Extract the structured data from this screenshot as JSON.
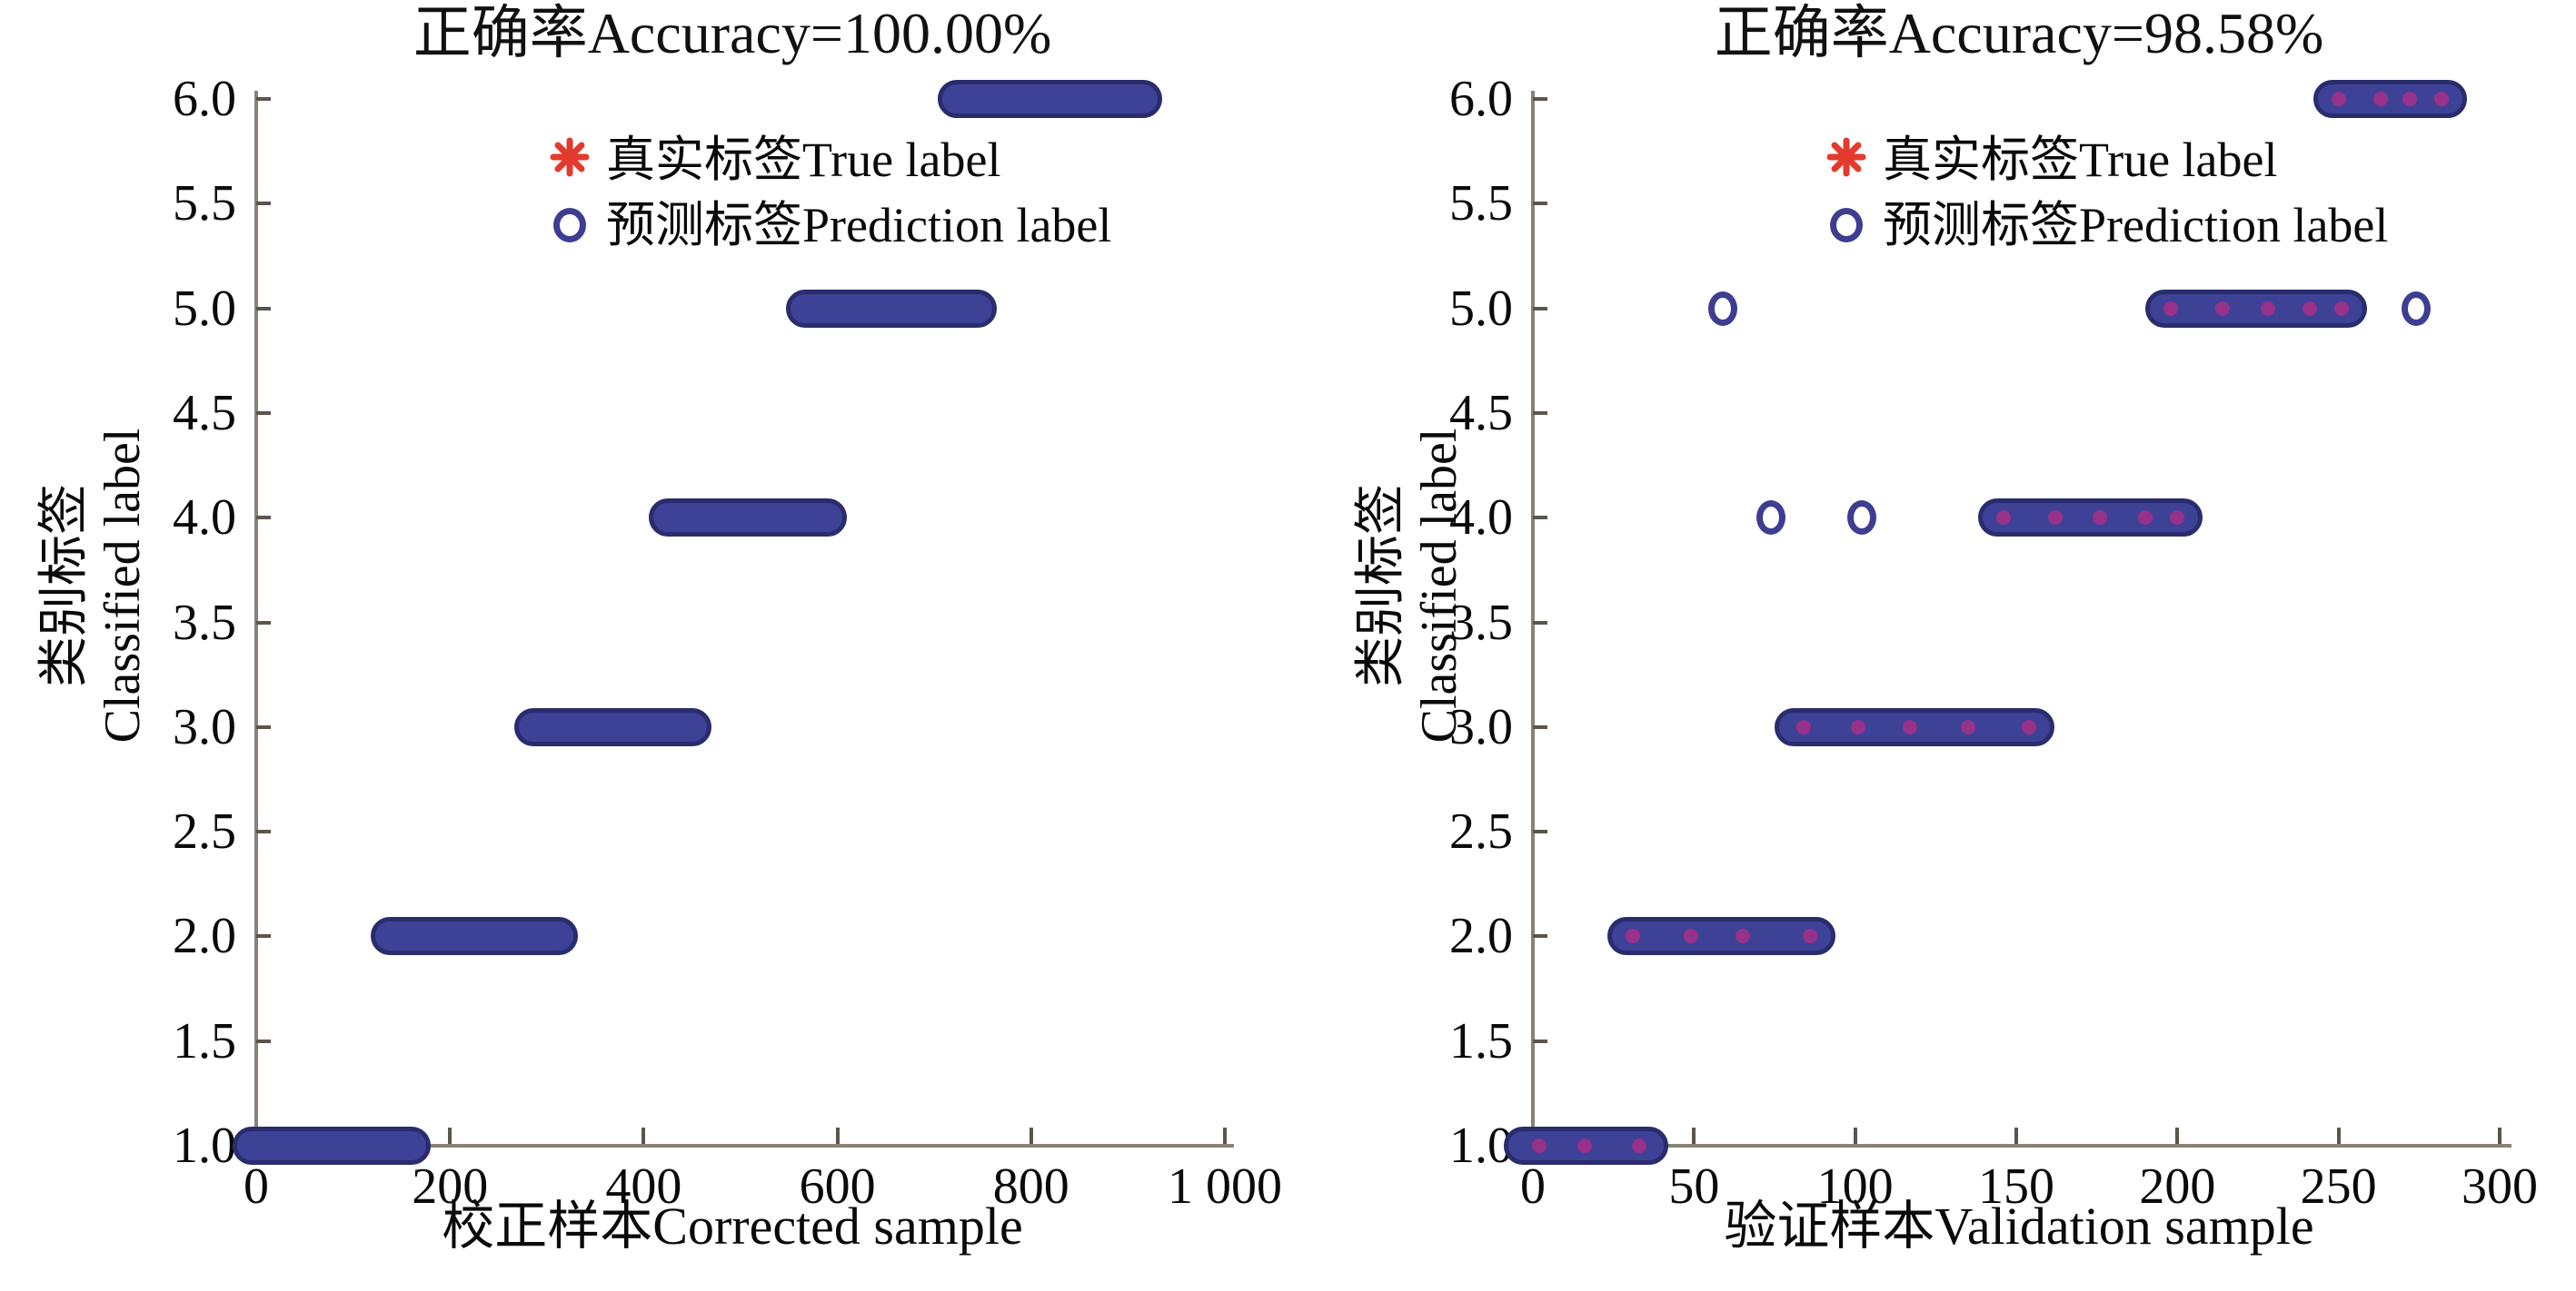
{
  "figure": {
    "background": "#ffffff"
  },
  "colors": {
    "bar_fill": "#3e4297",
    "bar_border": "#292c6d",
    "circle_ring": "#3d3d91",
    "asterisk_red": "#e23b2e",
    "true_dot_magenta": "#97318a",
    "axis_line": "#8a8177",
    "tick_mark": "#5c554c",
    "text": "#0a0a0a"
  },
  "legend": {
    "true_label": "真实标签True label",
    "prediction_label": "预测标签Prediction label"
  },
  "chart_data": [
    {
      "type": "scatter",
      "title": "正确率Accuracy=100.00%",
      "accuracy": "100.00%",
      "xlabel": "校正样本Corrected sample",
      "ylabel_cn": "类别标签",
      "ylabel_en": "Classified label",
      "xlim": [
        0,
        1000
      ],
      "ylim": [
        1.0,
        6.0
      ],
      "grid": false,
      "legend_position": "upper-center-inside",
      "xticks": [
        {
          "v": 0,
          "label": "0"
        },
        {
          "v": 200,
          "label": "200"
        },
        {
          "v": 400,
          "label": "400"
        },
        {
          "v": 600,
          "label": "600"
        },
        {
          "v": 800,
          "label": "800"
        },
        {
          "v": 1000,
          "label": "1 000"
        }
      ],
      "yticks": [
        {
          "v": 1.0,
          "label": "1.0"
        },
        {
          "v": 1.5,
          "label": "1.5"
        },
        {
          "v": 2.0,
          "label": "2.0"
        },
        {
          "v": 2.5,
          "label": "2.5"
        },
        {
          "v": 3.0,
          "label": "3.0"
        },
        {
          "v": 3.5,
          "label": "3.5"
        },
        {
          "v": 4.0,
          "label": "4.0"
        },
        {
          "v": 4.5,
          "label": "4.5"
        },
        {
          "v": 5.0,
          "label": "5.0"
        },
        {
          "v": 5.5,
          "label": "5.5"
        },
        {
          "v": 6.0,
          "label": "6.0"
        }
      ],
      "segments": [
        {
          "y": 1,
          "x0": -5,
          "x1": 160
        },
        {
          "y": 2,
          "x0": 138,
          "x1": 312
        },
        {
          "y": 3,
          "x0": 286,
          "x1": 450
        },
        {
          "y": 4,
          "x0": 425,
          "x1": 590
        },
        {
          "y": 5,
          "x0": 567,
          "x1": 745
        },
        {
          "y": 6,
          "x0": 723,
          "x1": 916
        }
      ],
      "true_dots": [],
      "misclassified": []
    },
    {
      "type": "scatter",
      "title": "正确率Accuracy=98.58%",
      "accuracy": "98.58%",
      "xlabel": "验证样本Validation sample",
      "ylabel_cn": "类别标签",
      "ylabel_en": "Classified label",
      "xlim": [
        0,
        300
      ],
      "ylim": [
        1.0,
        6.0
      ],
      "grid": false,
      "legend_position": "upper-center-inside",
      "xticks": [
        {
          "v": 0,
          "label": "0"
        },
        {
          "v": 50,
          "label": "50"
        },
        {
          "v": 100,
          "label": "100"
        },
        {
          "v": 150,
          "label": "150"
        },
        {
          "v": 200,
          "label": "200"
        },
        {
          "v": 250,
          "label": "250"
        },
        {
          "v": 300,
          "label": "300"
        }
      ],
      "yticks": [
        {
          "v": 1.0,
          "label": "1.0"
        },
        {
          "v": 1.5,
          "label": "1.5"
        },
        {
          "v": 2.0,
          "label": "2.0"
        },
        {
          "v": 2.5,
          "label": "2.5"
        },
        {
          "v": 3.0,
          "label": "3.0"
        },
        {
          "v": 3.5,
          "label": "3.5"
        },
        {
          "v": 4.0,
          "label": "4.0"
        },
        {
          "v": 4.5,
          "label": "4.5"
        },
        {
          "v": 5.0,
          "label": "5.0"
        },
        {
          "v": 5.5,
          "label": "5.5"
        },
        {
          "v": 6.0,
          "label": "6.0"
        }
      ],
      "segments": [
        {
          "y": 1,
          "x0": -3,
          "x1": 36
        },
        {
          "y": 2,
          "x0": 29,
          "x1": 88
        },
        {
          "y": 3,
          "x0": 81,
          "x1": 156
        },
        {
          "y": 4,
          "x0": 144,
          "x1": 202
        },
        {
          "y": 5,
          "x0": 196,
          "x1": 253
        },
        {
          "y": 6,
          "x0": 248,
          "x1": 284
        }
      ],
      "true_dots": [
        {
          "x": 2,
          "y": 1
        },
        {
          "x": 16,
          "y": 1
        },
        {
          "x": 33,
          "y": 1
        },
        {
          "x": 31,
          "y": 2
        },
        {
          "x": 49,
          "y": 2
        },
        {
          "x": 65,
          "y": 2
        },
        {
          "x": 86,
          "y": 2
        },
        {
          "x": 84,
          "y": 3
        },
        {
          "x": 101,
          "y": 3
        },
        {
          "x": 117,
          "y": 3
        },
        {
          "x": 135,
          "y": 3
        },
        {
          "x": 154,
          "y": 3
        },
        {
          "x": 146,
          "y": 4
        },
        {
          "x": 162,
          "y": 4
        },
        {
          "x": 176,
          "y": 4
        },
        {
          "x": 190,
          "y": 4
        },
        {
          "x": 200,
          "y": 4
        },
        {
          "x": 198,
          "y": 5
        },
        {
          "x": 214,
          "y": 5
        },
        {
          "x": 228,
          "y": 5
        },
        {
          "x": 241,
          "y": 5
        },
        {
          "x": 251,
          "y": 5
        },
        {
          "x": 250,
          "y": 6
        },
        {
          "x": 263,
          "y": 6
        },
        {
          "x": 272,
          "y": 6
        },
        {
          "x": 282,
          "y": 6
        }
      ],
      "misclassified": [
        {
          "x": 59,
          "y": 5
        },
        {
          "x": 74,
          "y": 4
        },
        {
          "x": 102,
          "y": 4
        },
        {
          "x": 274,
          "y": 5
        }
      ]
    }
  ]
}
